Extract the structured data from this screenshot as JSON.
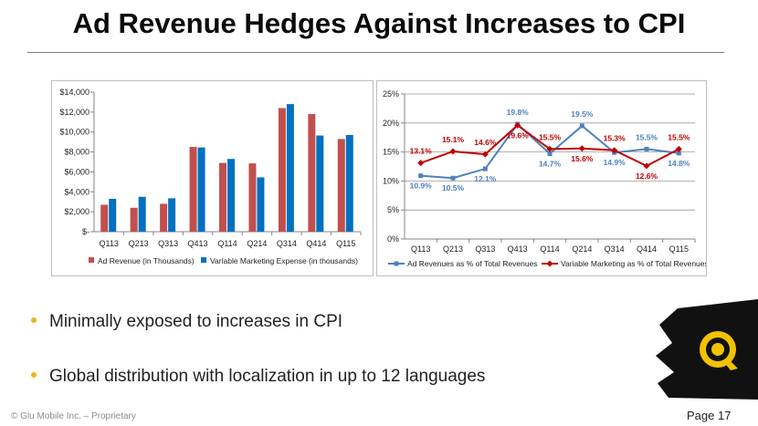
{
  "title": "Ad Revenue Hedges Against Increases to CPI",
  "bullets": [
    "Minimally exposed to increases in CPI",
    "Global distribution with localization in up to 12 languages"
  ],
  "footer": {
    "copyright": "© Glu Mobile Inc. – Proprietary",
    "page": "Page 17"
  },
  "colors": {
    "red": "#c0504d",
    "blue": "#0070c0",
    "line_blue": "#4f81bd",
    "line_red": "#c00000",
    "bullet": "#f2b21b"
  },
  "logo": {
    "icon": "glu-logo-icon"
  },
  "chart_data": [
    {
      "type": "bar",
      "categories": [
        "Q113",
        "Q213",
        "Q313",
        "Q413",
        "Q114",
        "Q214",
        "Q314",
        "Q414",
        "Q115"
      ],
      "series": [
        {
          "name": "Ad Revenue (in Thousands)",
          "values": [
            2700,
            2400,
            2800,
            8500,
            6900,
            6850,
            12400,
            11800,
            9300
          ]
        },
        {
          "name": "Variable Marketing Expense (in thousands)",
          "values": [
            3300,
            3500,
            3350,
            8450,
            7300,
            5450,
            12800,
            9650,
            9700
          ]
        }
      ],
      "ylim": [
        0,
        14000
      ],
      "yticks": [
        0,
        2000,
        4000,
        6000,
        8000,
        10000,
        12000,
        14000
      ],
      "ytick_labels": [
        "$-",
        "$2,000",
        "$4,000",
        "$6,000",
        "$8,000",
        "$10,000",
        "$12,000",
        "$14,000"
      ],
      "grid": false,
      "legend": "bottom"
    },
    {
      "type": "line",
      "categories": [
        "Q113",
        "Q213",
        "Q313",
        "Q413",
        "Q114",
        "Q214",
        "Q314",
        "Q414",
        "Q115"
      ],
      "series": [
        {
          "name": "Ad Revenues as % of Total Revenues",
          "values": [
            10.9,
            10.5,
            12.1,
            19.8,
            14.7,
            19.5,
            14.9,
            15.5,
            14.8
          ],
          "labels": [
            "10.9%",
            "10.5%",
            "12.1%",
            "19.8%",
            "14.7%",
            "19.5%",
            "14.9%",
            "15.5%",
            "14.8%"
          ]
        },
        {
          "name": "Variable Marketing as % of Total Revenues",
          "values": [
            13.1,
            15.1,
            14.6,
            19.6,
            15.5,
            15.6,
            15.3,
            12.6,
            15.5
          ],
          "labels": [
            "13.1%",
            "15.1%",
            "14.6%",
            "19.6%",
            "15.5%",
            "15.6%",
            "15.3%",
            "12.6%",
            "15.5%"
          ]
        }
      ],
      "ylim": [
        0,
        25
      ],
      "yticks": [
        0,
        5,
        10,
        15,
        20,
        25
      ],
      "ytick_labels": [
        "0%",
        "5%",
        "10%",
        "15%",
        "20%",
        "25%"
      ],
      "grid": true,
      "legend": "bottom"
    }
  ]
}
